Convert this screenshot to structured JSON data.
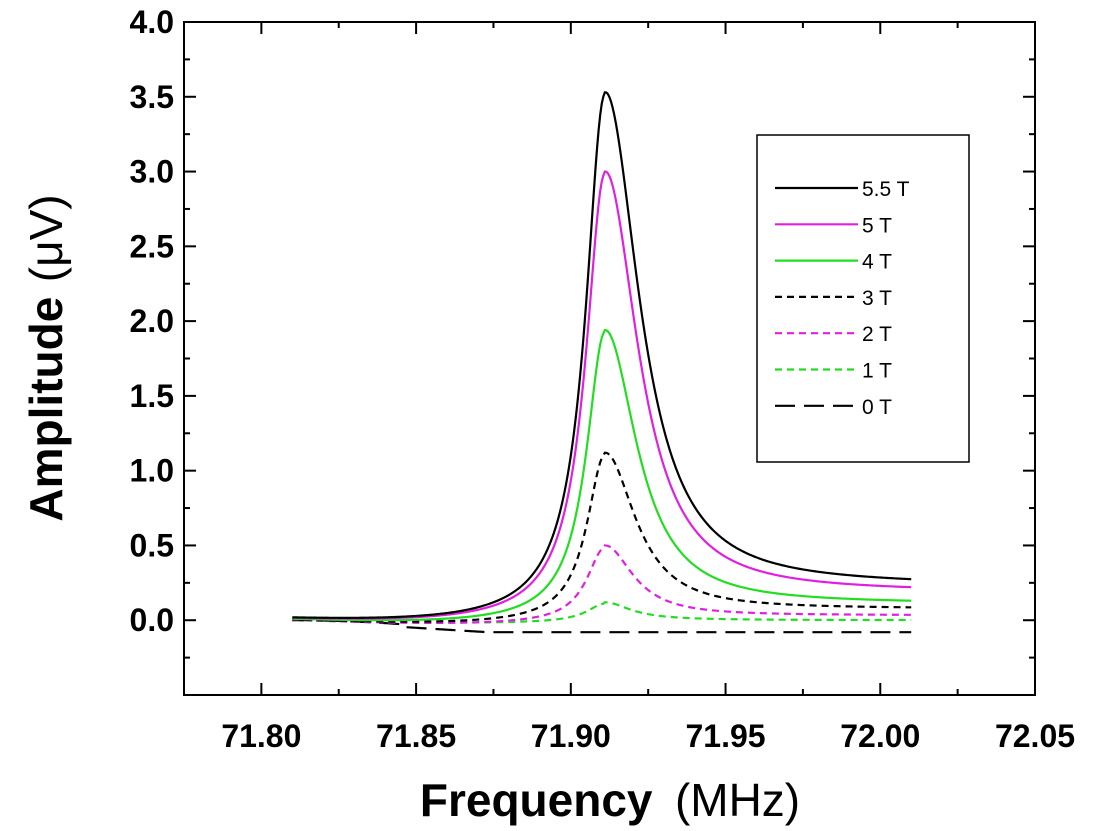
{
  "chart_data": {
    "type": "line",
    "title": "",
    "xlabel": "Frequency",
    "xlabel_unit": "(MHz)",
    "ylabel": "Amplitude",
    "ylabel_unit": "(μV)",
    "xlim": [
      71.775,
      72.05
    ],
    "ylim": [
      -0.5,
      4.0
    ],
    "xticks": [
      71.8,
      71.85,
      71.9,
      71.95,
      72.0,
      72.05
    ],
    "xtick_labels": [
      "71.80",
      "71.85",
      "71.90",
      "71.95",
      "72.00",
      "72.05"
    ],
    "yticks": [
      0.0,
      0.5,
      1.0,
      1.5,
      2.0,
      2.5,
      3.0,
      3.5,
      4.0
    ],
    "ytick_labels": [
      "0.0",
      "0.5",
      "1.0",
      "1.5",
      "2.0",
      "2.5",
      "3.0",
      "3.5",
      "4.0"
    ],
    "grid": false,
    "legend": {
      "placement": "top-right"
    },
    "x_range": [
      71.81,
      72.01
    ],
    "peak_center": 71.911,
    "series": [
      {
        "name": "5.5 T",
        "color": "#000000",
        "dash": "solid",
        "peak": 3.53,
        "offset": 0.0,
        "tail_end": 0.21,
        "low_dip": -0.03,
        "gamma_left": 0.0075,
        "gamma_right": 0.0135
      },
      {
        "name": "5 T",
        "color": "#e020e0",
        "dash": "solid",
        "peak": 3.0,
        "offset": 0.0,
        "tail_end": 0.17,
        "low_dip": -0.03,
        "gamma_left": 0.0075,
        "gamma_right": 0.013
      },
      {
        "name": "4 T",
        "color": "#22dd22",
        "dash": "solid",
        "peak": 1.94,
        "offset": 0.0,
        "tail_end": 0.1,
        "low_dip": -0.03,
        "gamma_left": 0.0072,
        "gamma_right": 0.0125
      },
      {
        "name": "3 T",
        "color": "#000000",
        "dash": "short",
        "peak": 1.12,
        "offset": 0.0,
        "tail_end": 0.07,
        "low_dip": -0.03,
        "gamma_left": 0.007,
        "gamma_right": 0.012
      },
      {
        "name": "2 T",
        "color": "#e020e0",
        "dash": "short",
        "peak": 0.5,
        "offset": 0.0,
        "tail_end": 0.03,
        "low_dip": -0.03,
        "gamma_left": 0.007,
        "gamma_right": 0.011
      },
      {
        "name": "1 T",
        "color": "#22dd22",
        "dash": "short",
        "peak": 0.12,
        "offset": 0.0,
        "tail_end": 0.0,
        "low_dip": -0.02,
        "gamma_left": 0.007,
        "gamma_right": 0.01
      },
      {
        "name": "0 T",
        "color": "#000000",
        "dash": "long",
        "peak": 0.0,
        "offset": 0.0,
        "tail_end": -0.08,
        "low_dip": -0.08,
        "gamma_left": 0.007,
        "gamma_right": 0.01
      }
    ]
  }
}
